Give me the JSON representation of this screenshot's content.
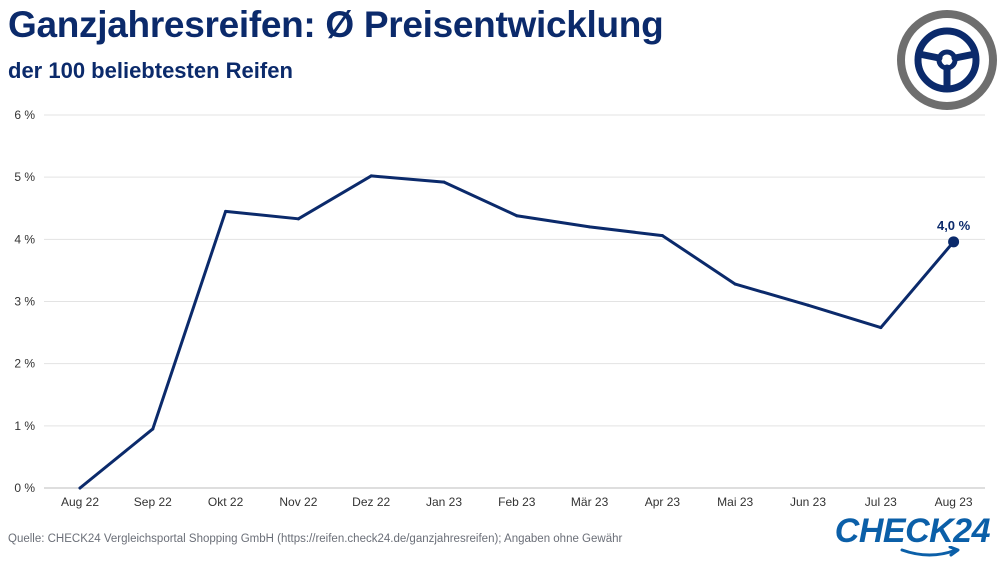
{
  "header": {
    "title": "Ganzjahresreifen: Ø Preisentwicklung",
    "subtitle": "der 100 beliebtesten Reifen"
  },
  "footer": {
    "source": "Quelle: CHECK24 Vergleichsportal Shopping GmbH (https://reifen.check24.de/ganzjahresreifen); Angaben ohne Gewähr",
    "brand": "CHECK24"
  },
  "icons": {
    "logo": "steering-wheel-icon",
    "brand_swoosh": "swoosh-icon"
  },
  "colors": {
    "accent": "#0b2a6b",
    "brand": "#0b5fa8",
    "grid": "#e3e3e3"
  },
  "chart_data": {
    "type": "line",
    "title": "Ganzjahresreifen: Ø Preisentwicklung",
    "subtitle": "der 100 beliebtesten Reifen",
    "categories": [
      "Aug 22",
      "Sep 22",
      "Okt 22",
      "Nov 22",
      "Dez 22",
      "Jan 23",
      "Feb 23",
      "Mär 23",
      "Apr 23",
      "Mai 23",
      "Jun 23",
      "Jul 23",
      "Aug 23"
    ],
    "series": [
      {
        "values": [
          0,
          0.95,
          4.45,
          4.33,
          5.02,
          4.92,
          4.38,
          4.2,
          4.06,
          3.28,
          2.94,
          2.58,
          3.96
        ]
      }
    ],
    "ylim": [
      0,
      6
    ],
    "yticks": [
      0,
      1,
      2,
      3,
      4,
      5,
      6
    ],
    "ytick_labels": [
      "0 %",
      "1 %",
      "2 %",
      "3 %",
      "4 %",
      "5 %",
      "6 %"
    ],
    "grid": true,
    "annotation": {
      "index": 12,
      "label": "4,0 %"
    }
  }
}
